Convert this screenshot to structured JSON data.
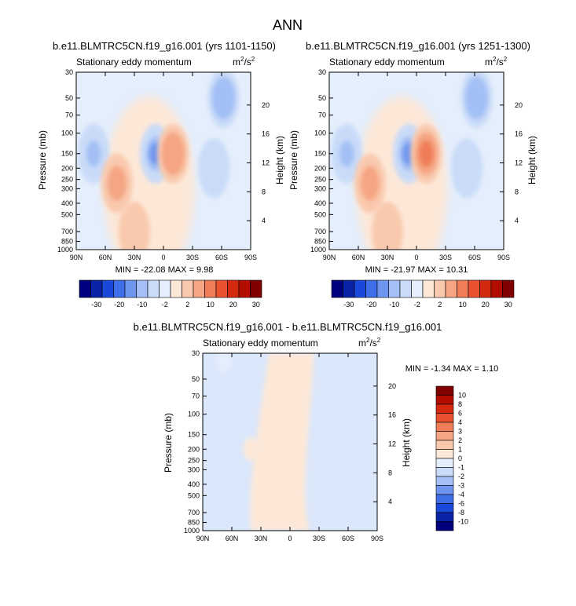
{
  "figure": {
    "title": "ANN",
    "units_base": "m",
    "units_exp1": "2",
    "units_mid": "/s",
    "units_exp2": "2"
  },
  "chart_data": [
    {
      "type": "heatmap",
      "title": "b.e11.BLMTRC5CN.f19_g16.001 (yrs 1101-1150)",
      "subtitle": "Stationary eddy momentum",
      "xlabel": "",
      "ylabel": "Pressure (mb)",
      "y2label": "Height (km)",
      "xticks": [
        "90N",
        "60N",
        "30N",
        "0",
        "30S",
        "60S",
        "90S"
      ],
      "yticks": [
        "30",
        "50",
        "70",
        "100",
        "150",
        "200",
        "250",
        "300",
        "400",
        "500",
        "700",
        "850",
        "1000"
      ],
      "y2ticks": [
        "20",
        "16",
        "12",
        "8",
        "4"
      ],
      "xlim": [
        90,
        -90
      ],
      "ylim": [
        1000,
        30
      ],
      "min_label": "MIN = -22.08   MAX =  9.98",
      "min": -22.08,
      "max": 9.98,
      "features": [
        {
          "lat": 72,
          "p": 150,
          "v": -8
        },
        {
          "lat": 48,
          "p": 270,
          "v": 6
        },
        {
          "lat": 8,
          "p": 150,
          "v": -12
        },
        {
          "lat": -10,
          "p": 150,
          "v": 9
        },
        {
          "lat": -62,
          "p": 50,
          "v": -10
        },
        {
          "lat": -52,
          "p": 200,
          "v": -3
        },
        {
          "lat": 30,
          "p": 700,
          "v": 2
        }
      ]
    },
    {
      "type": "heatmap",
      "title": "b.e11.BLMTRC5CN.f19_g16.001 (yrs 1251-1300)",
      "subtitle": "Stationary eddy momentum",
      "xlabel": "",
      "ylabel": "Pressure (mb)",
      "y2label": "Height (km)",
      "xticks": [
        "90N",
        "60N",
        "30N",
        "0",
        "30S",
        "60S",
        "90S"
      ],
      "yticks": [
        "30",
        "50",
        "70",
        "100",
        "150",
        "200",
        "250",
        "300",
        "400",
        "500",
        "700",
        "850",
        "1000"
      ],
      "y2ticks": [
        "20",
        "16",
        "12",
        "8",
        "4"
      ],
      "xlim": [
        90,
        -90
      ],
      "ylim": [
        1000,
        30
      ],
      "min_label": "MIN = -21.97   MAX =  10.31",
      "min": -21.97,
      "max": 10.31,
      "features": [
        {
          "lat": 72,
          "p": 150,
          "v": -8
        },
        {
          "lat": 48,
          "p": 270,
          "v": 6
        },
        {
          "lat": 8,
          "p": 150,
          "v": -12
        },
        {
          "lat": -10,
          "p": 150,
          "v": 10
        },
        {
          "lat": -62,
          "p": 50,
          "v": -10
        },
        {
          "lat": -52,
          "p": 200,
          "v": -3
        },
        {
          "lat": 30,
          "p": 700,
          "v": 2
        }
      ]
    },
    {
      "type": "heatmap",
      "title": "b.e11.BLMTRC5CN.f19_g16.001 - b.e11.BLMTRC5CN.f19_g16.001",
      "subtitle": "Stationary eddy momentum",
      "xlabel": "",
      "ylabel": "Pressure (mb)",
      "y2label": "Height (km)",
      "xticks": [
        "90N",
        "60N",
        "30N",
        "0",
        "30S",
        "60S",
        "90S"
      ],
      "yticks": [
        "30",
        "50",
        "70",
        "100",
        "150",
        "200",
        "250",
        "300",
        "400",
        "500",
        "700",
        "850",
        "1000"
      ],
      "y2ticks": [
        "20",
        "16",
        "12",
        "8",
        "4"
      ],
      "xlim": [
        90,
        -90
      ],
      "ylim": [
        1000,
        30
      ],
      "min_label": "MIN = -1.34   MAX =  1.10",
      "min": -1.34,
      "max": 1.1,
      "features": [
        {
          "lat": 20,
          "p": 400,
          "v": 0.5
        },
        {
          "lat": 68,
          "p": 35,
          "v": -0.8
        },
        {
          "lat": 40,
          "p": 200,
          "v": 0.9
        }
      ]
    }
  ],
  "legends": {
    "main": {
      "labels": [
        "-30",
        "-20",
        "-10",
        "-2",
        "2",
        "10",
        "20",
        "30"
      ],
      "colors": [
        "#00007f",
        "#0a24a8",
        "#1a48d8",
        "#3f6fe8",
        "#6f96ef",
        "#a3bff5",
        "#c9dbf8",
        "#e4eefc",
        "#fde8d8",
        "#f9c9ad",
        "#f5a583",
        "#ef7d58",
        "#e8522f",
        "#d5290f",
        "#b30d00",
        "#800000"
      ]
    },
    "diff": {
      "labels": [
        "10",
        "8",
        "6",
        "4",
        "3",
        "2",
        "1",
        "0",
        "-1",
        "-2",
        "-3",
        "-4",
        "-6",
        "-8",
        "-10"
      ],
      "colors": [
        "#800000",
        "#b30d00",
        "#d5290f",
        "#e8522f",
        "#ef7d58",
        "#f5a583",
        "#f9c9ad",
        "#fde8d8",
        "#e4eefc",
        "#c9dbf8",
        "#a3bff5",
        "#6f96ef",
        "#3f6fe8",
        "#1a48d8",
        "#0a24a8",
        "#00007f"
      ]
    }
  }
}
